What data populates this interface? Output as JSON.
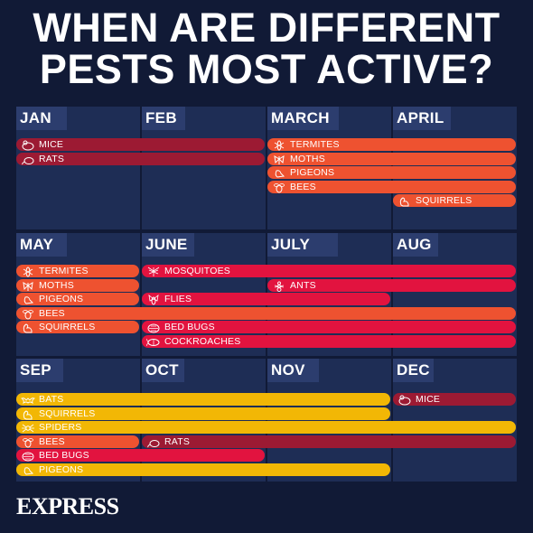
{
  "title_line1": "WHEN ARE DIFFERENT",
  "title_line2": "PESTS MOST ACTIVE?",
  "logo": "EXPRESS",
  "colors": {
    "background": "#111a36",
    "panel": "#1e2d55",
    "month_tab": "#2c3d6e",
    "dark_red": "#9c1a33",
    "orange": "#ee5230",
    "pink_red": "#e2133f",
    "yellow": "#f2b705"
  },
  "months": [
    "JAN",
    "FEB",
    "MARCH",
    "APRIL",
    "MAY",
    "JUNE",
    "JULY",
    "AUG",
    "SEP",
    "OCT",
    "NOV",
    "DEC"
  ],
  "rows": [
    {
      "bars": [
        {
          "label": "MICE",
          "start": 0,
          "end": 2,
          "color": "dark_red",
          "icon": "mouse-icon"
        },
        {
          "label": "RATS",
          "start": 0,
          "end": 2,
          "color": "dark_red",
          "icon": "rat-icon"
        },
        {
          "label": "TERMITES",
          "start": 2,
          "end": 4,
          "color": "orange",
          "icon": "termite-icon",
          "line": 0
        },
        {
          "label": "MOTHS",
          "start": 2,
          "end": 4,
          "color": "orange",
          "icon": "moth-icon",
          "line": 1
        },
        {
          "label": "PIGEONS",
          "start": 2,
          "end": 4,
          "color": "orange",
          "icon": "pigeon-icon",
          "line": 2
        },
        {
          "label": "BEES",
          "start": 2,
          "end": 4,
          "color": "orange",
          "icon": "bee-icon",
          "line": 3
        },
        {
          "label": "SQUIRRELS",
          "start": 3,
          "end": 4,
          "color": "orange",
          "icon": "squirrel-icon",
          "line": 4
        }
      ]
    },
    {
      "bars": [
        {
          "label": "TERMITES",
          "start": 0,
          "end": 1,
          "color": "orange",
          "icon": "termite-icon",
          "line": 0
        },
        {
          "label": "MOSQUITOES",
          "start": 1,
          "end": 4,
          "color": "pink_red",
          "icon": "mosquito-icon",
          "line": 0
        },
        {
          "label": "MOTHS",
          "start": 0,
          "end": 1,
          "color": "orange",
          "icon": "moth-icon",
          "line": 1
        },
        {
          "label": "ANTS",
          "start": 2,
          "end": 4,
          "color": "pink_red",
          "icon": "ant-icon",
          "line": 1
        },
        {
          "label": "PIGEONS",
          "start": 0,
          "end": 1,
          "color": "orange",
          "icon": "pigeon-icon",
          "line": 2
        },
        {
          "label": "FLIES",
          "start": 1,
          "end": 3,
          "color": "pink_red",
          "icon": "fly-icon",
          "line": 2
        },
        {
          "label": "BEES",
          "start": 0,
          "end": 4,
          "color": "orange",
          "icon": "bee-icon",
          "line": 3
        },
        {
          "label": "SQUIRRELS",
          "start": 0,
          "end": 1,
          "color": "orange",
          "icon": "squirrel-icon",
          "line": 4
        },
        {
          "label": "BED BUGS",
          "start": 1,
          "end": 4,
          "color": "pink_red",
          "icon": "bedbug-icon",
          "line": 4
        },
        {
          "label": "COCKROACHES",
          "start": 1,
          "end": 4,
          "color": "pink_red",
          "icon": "cockroach-icon",
          "line": 5
        }
      ]
    },
    {
      "bars": [
        {
          "label": "BATS",
          "start": 0,
          "end": 3,
          "color": "yellow",
          "icon": "bat-icon",
          "line": 0
        },
        {
          "label": "MICE",
          "start": 3,
          "end": 4,
          "color": "dark_red",
          "icon": "mouse-icon",
          "line": 0
        },
        {
          "label": "SQUIRRELS",
          "start": 0,
          "end": 3,
          "color": "yellow",
          "icon": "squirrel-icon",
          "line": 1
        },
        {
          "label": "SPIDERS",
          "start": 0,
          "end": 4,
          "color": "yellow",
          "icon": "spider-icon",
          "line": 2
        },
        {
          "label": "BEES",
          "start": 0,
          "end": 1,
          "color": "orange",
          "icon": "bee-icon",
          "line": 3
        },
        {
          "label": "RATS",
          "start": 1,
          "end": 4,
          "color": "dark_red",
          "icon": "rat-icon",
          "line": 3
        },
        {
          "label": "BED BUGS",
          "start": 0,
          "end": 2,
          "color": "pink_red",
          "icon": "bedbug-icon",
          "line": 4
        },
        {
          "label": "PIGEONS",
          "start": 0,
          "end": 3,
          "color": "yellow",
          "icon": "pigeon-icon",
          "line": 5
        }
      ]
    }
  ]
}
